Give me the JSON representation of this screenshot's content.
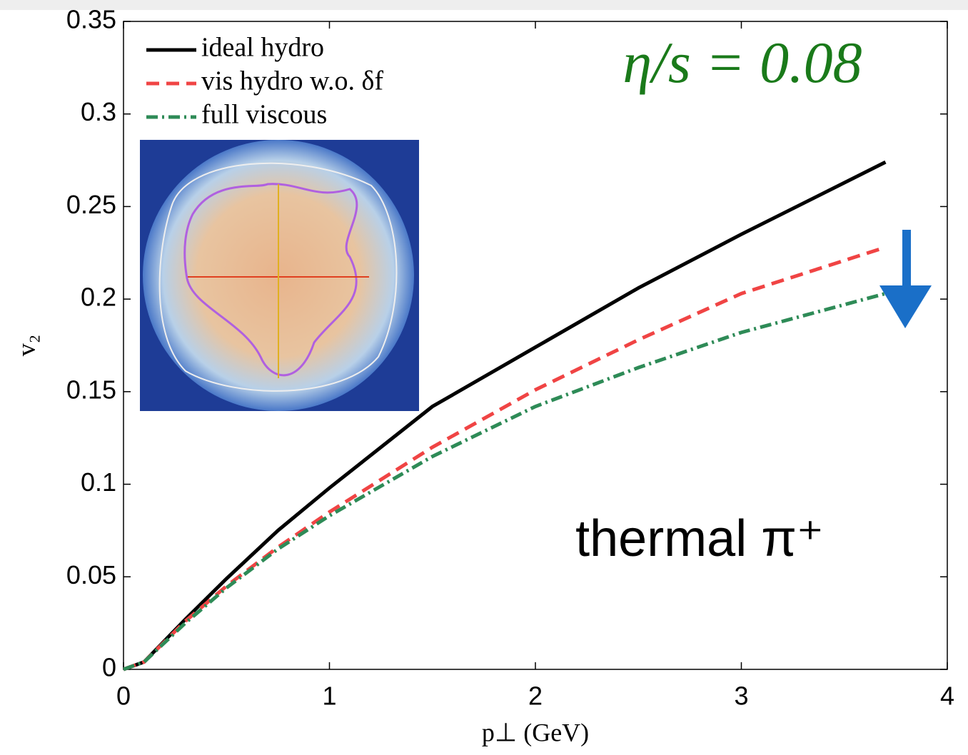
{
  "chart_data": {
    "type": "line",
    "x_label": "p⊥ (GeV)",
    "y_label": "v₂",
    "annotations": [
      "η/s = 0.08",
      "thermal π⁺"
    ],
    "x": [
      0,
      0.1,
      0.3,
      0.5,
      0.75,
      1,
      1.5,
      2,
      2.5,
      3,
      3.7
    ],
    "series": [
      {
        "name": "ideal hydro",
        "color": "#000000",
        "dash": "solid",
        "values": [
          0,
          0.004,
          0.027,
          0.049,
          0.075,
          0.098,
          0.142,
          0.174,
          0.206,
          0.235,
          0.274
        ]
      },
      {
        "name": "vis hydro w.o. δf",
        "color": "#f04444",
        "dash": "dashed",
        "values": [
          0,
          0.004,
          0.026,
          0.045,
          0.066,
          0.085,
          0.12,
          0.151,
          0.178,
          0.203,
          0.228
        ]
      },
      {
        "name": "full viscous",
        "color": "#2e8b57",
        "dash": "dashdot",
        "values": [
          0,
          0.004,
          0.025,
          0.044,
          0.065,
          0.083,
          0.115,
          0.142,
          0.163,
          0.182,
          0.203
        ]
      }
    ],
    "xlim": [
      0,
      4
    ],
    "ylim": [
      0,
      0.35
    ],
    "xticks": [
      0,
      1,
      2,
      3,
      4
    ],
    "yticks": [
      0,
      0.05,
      0.1,
      0.15,
      0.2,
      0.25,
      0.3,
      0.35
    ],
    "legend": "upper left",
    "grid": false
  }
}
